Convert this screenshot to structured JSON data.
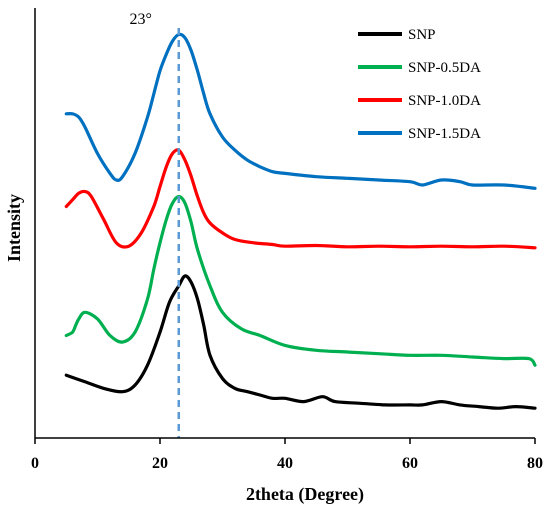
{
  "chart_data": {
    "type": "line",
    "title": "",
    "xlabel": "2theta (Degree)",
    "ylabel": "Intensity",
    "xlim": [
      0,
      80
    ],
    "xticks": [
      0,
      20,
      40,
      60,
      80
    ],
    "y_ticks_shown": false,
    "grid": false,
    "legend_position": "top-right",
    "annotation": {
      "text": "23°",
      "x": 23,
      "style": "dashed vertical line",
      "color": "#5b9bd5"
    },
    "series": [
      {
        "name": "SNP",
        "color": "#000000",
        "x": [
          5,
          8,
          11,
          14,
          16,
          18,
          20,
          21.5,
          23,
          24,
          25,
          26,
          27,
          28,
          30,
          32,
          34,
          36,
          38,
          40,
          43,
          46,
          48,
          52,
          56,
          60,
          62,
          65,
          68,
          71,
          74,
          77,
          80
        ],
        "y": [
          0.19,
          0.17,
          0.15,
          0.14,
          0.16,
          0.22,
          0.32,
          0.41,
          0.46,
          0.49,
          0.47,
          0.42,
          0.34,
          0.25,
          0.18,
          0.15,
          0.14,
          0.13,
          0.12,
          0.12,
          0.11,
          0.125,
          0.11,
          0.105,
          0.1,
          0.1,
          0.1,
          0.11,
          0.1,
          0.095,
          0.09,
          0.095,
          0.09
        ]
      },
      {
        "name": "SNP-0.5DA",
        "color": "#00b050",
        "x": [
          5,
          6,
          6.5,
          7,
          8,
          10,
          12,
          14,
          16,
          18,
          19,
          20,
          21,
          22,
          23,
          24,
          25,
          26,
          28,
          30,
          33,
          36,
          40,
          45,
          50,
          55,
          60,
          65,
          70,
          75,
          79,
          80
        ],
        "y": [
          0.31,
          0.32,
          0.34,
          0.36,
          0.38,
          0.36,
          0.31,
          0.29,
          0.32,
          0.42,
          0.51,
          0.59,
          0.66,
          0.71,
          0.73,
          0.71,
          0.65,
          0.57,
          0.46,
          0.38,
          0.33,
          0.31,
          0.28,
          0.265,
          0.26,
          0.255,
          0.25,
          0.25,
          0.245,
          0.24,
          0.24,
          0.22
        ]
      },
      {
        "name": "SNP-1.0DA",
        "color": "#ff0000",
        "x": [
          5,
          6,
          7,
          8,
          9,
          11,
          13,
          15,
          17,
          19,
          20,
          21,
          22,
          23,
          24,
          25,
          26,
          27,
          28,
          30,
          32,
          35,
          38,
          40,
          45,
          50,
          55,
          60,
          65,
          70,
          75,
          80
        ],
        "y": [
          0.7,
          0.72,
          0.74,
          0.745,
          0.73,
          0.66,
          0.59,
          0.58,
          0.62,
          0.7,
          0.76,
          0.82,
          0.86,
          0.87,
          0.84,
          0.79,
          0.73,
          0.68,
          0.65,
          0.62,
          0.6,
          0.59,
          0.585,
          0.58,
          0.582,
          0.578,
          0.58,
          0.578,
          0.58,
          0.578,
          0.58,
          0.575
        ]
      },
      {
        "name": "SNP-1.5DA",
        "color": "#0070c0",
        "x": [
          5,
          6,
          7,
          8,
          10,
          12,
          13,
          14,
          16,
          18,
          19,
          20,
          21,
          22,
          23,
          24,
          25,
          26,
          27,
          28,
          30,
          32,
          34,
          36,
          38,
          40,
          45,
          50,
          55,
          60,
          62,
          65,
          68,
          70,
          75,
          80
        ],
        "y": [
          0.98,
          0.98,
          0.97,
          0.94,
          0.86,
          0.8,
          0.78,
          0.79,
          0.86,
          0.97,
          1.04,
          1.11,
          1.16,
          1.2,
          1.22,
          1.21,
          1.17,
          1.11,
          1.04,
          0.98,
          0.91,
          0.87,
          0.84,
          0.82,
          0.805,
          0.8,
          0.79,
          0.785,
          0.78,
          0.775,
          0.765,
          0.78,
          0.775,
          0.765,
          0.765,
          0.755
        ]
      }
    ]
  }
}
